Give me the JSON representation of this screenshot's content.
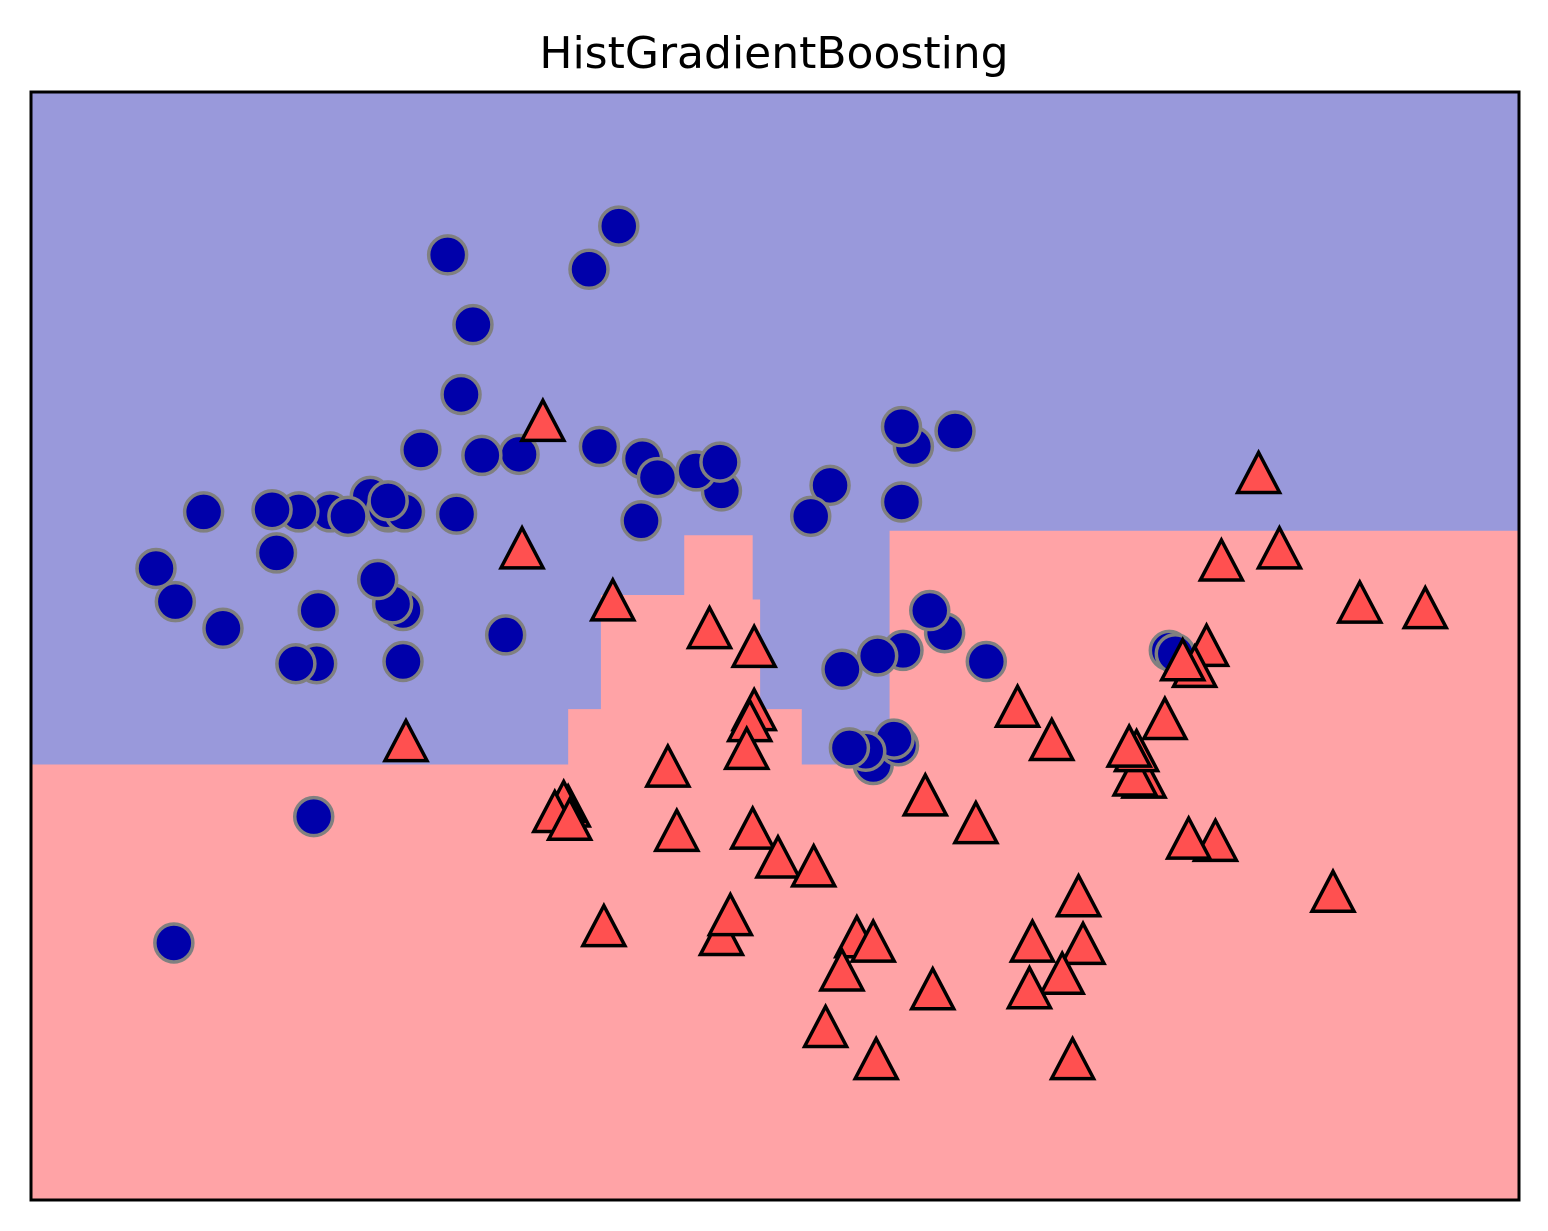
{
  "chart_data": {
    "type": "scatter",
    "title": "HistGradientBoosting",
    "xlabel": "",
    "ylabel": "",
    "xlim": [
      0,
      1000
    ],
    "ylim": [
      0,
      1000
    ],
    "grid": false,
    "ticks": false,
    "legend": "none",
    "colors": {
      "region_class0": "#9999DB",
      "region_class1": "#FFA3A6",
      "class0_fill": "#0000AA",
      "class0_edge": "#808080",
      "class1_fill": "#FF5050",
      "class1_edge": "#000000",
      "frame": "#000000"
    },
    "decision_boundary": [
      [
        0,
        393
      ],
      [
        361,
        393
      ],
      [
        361,
        443
      ],
      [
        383,
        443
      ],
      [
        383,
        546
      ],
      [
        439,
        546
      ],
      [
        439,
        600
      ],
      [
        485,
        600
      ],
      [
        485,
        542
      ],
      [
        490,
        542
      ],
      [
        490,
        443
      ],
      [
        518,
        443
      ],
      [
        518,
        393
      ],
      [
        577,
        393
      ],
      [
        577,
        604
      ],
      [
        1000,
        604
      ]
    ],
    "series": [
      {
        "marker": "circle",
        "points": [
          [
            280,
            853
          ],
          [
            297,
            790
          ],
          [
            289,
            727
          ],
          [
            395,
            879
          ],
          [
            375,
            840
          ],
          [
            201,
            621
          ],
          [
            228,
            635
          ],
          [
            286,
            619
          ],
          [
            262,
            677
          ],
          [
            240,
            621
          ],
          [
            180,
            621
          ],
          [
            239,
            623
          ],
          [
            328,
            673
          ],
          [
            303,
            672
          ],
          [
            251,
            621
          ],
          [
            213,
            617
          ],
          [
            240,
            631
          ],
          [
            382,
            680
          ],
          [
            459,
            655
          ],
          [
            410,
            613
          ],
          [
            411,
            669
          ],
          [
            464,
            640
          ],
          [
            447,
            658
          ],
          [
            421,
            652
          ],
          [
            463,
            666
          ],
          [
            537,
            645
          ],
          [
            524,
            617
          ],
          [
            621,
            694
          ],
          [
            593,
            680
          ],
          [
            585,
            630
          ],
          [
            585,
            698
          ],
          [
            162,
            623
          ],
          [
            116,
            621
          ],
          [
            165,
            584
          ],
          [
            84,
            570
          ],
          [
            97,
            540
          ],
          [
            129,
            516
          ],
          [
            193,
            532
          ],
          [
            250,
            532
          ],
          [
            243,
            538
          ],
          [
            319,
            510
          ],
          [
            250,
            486
          ],
          [
            192,
            484
          ],
          [
            178,
            484
          ],
          [
            233,
            560
          ],
          [
            586,
            496
          ],
          [
            614,
            512
          ],
          [
            604,
            532
          ],
          [
            642,
            486
          ],
          [
            569,
            491
          ],
          [
            545,
            479
          ],
          [
            566,
            393
          ],
          [
            583,
            410
          ],
          [
            580,
            416
          ],
          [
            561,
            405
          ],
          [
            550,
            408
          ],
          [
            765,
            496
          ],
          [
            769,
            493
          ],
          [
            190,
            346
          ],
          [
            96,
            232
          ]
        ]
      },
      {
        "marker": "triangle",
        "points": [
          [
            344,
            700
          ],
          [
            330,
            585
          ],
          [
            391,
            538
          ],
          [
            456,
            513
          ],
          [
            486,
            496
          ],
          [
            486,
            439
          ],
          [
            483,
            429
          ],
          [
            481,
            404
          ],
          [
            428,
            388
          ],
          [
            361,
            352
          ],
          [
            358,
            356
          ],
          [
            352,
            347
          ],
          [
            362,
            340
          ],
          [
            485,
            332
          ],
          [
            434,
            330
          ],
          [
            502,
            306
          ],
          [
            526,
            298
          ],
          [
            464,
            236
          ],
          [
            470,
            254
          ],
          [
            385,
            244
          ],
          [
            252,
            411
          ],
          [
            825,
            653
          ],
          [
            800,
            574
          ],
          [
            839,
            585
          ],
          [
            893,
            536
          ],
          [
            937,
            531
          ],
          [
            790,
            497
          ],
          [
            782,
            478
          ],
          [
            774,
            484
          ],
          [
            762,
            431
          ],
          [
            748,
            378
          ],
          [
            742,
            380
          ],
          [
            743,
            402
          ],
          [
            663,
            442
          ],
          [
            738,
            406
          ],
          [
            686,
            412
          ],
          [
            796,
            321
          ],
          [
            778,
            323
          ],
          [
            635,
            337
          ],
          [
            601,
            362
          ],
          [
            875,
            275
          ],
          [
            704,
            271
          ],
          [
            673,
            230
          ],
          [
            707,
            228
          ],
          [
            693,
            201
          ],
          [
            555,
            234
          ],
          [
            566,
            230
          ],
          [
            545,
            204
          ],
          [
            606,
            187
          ],
          [
            671,
            188
          ],
          [
            534,
            153
          ],
          [
            568,
            124
          ],
          [
            700,
            124
          ]
        ]
      }
    ]
  }
}
